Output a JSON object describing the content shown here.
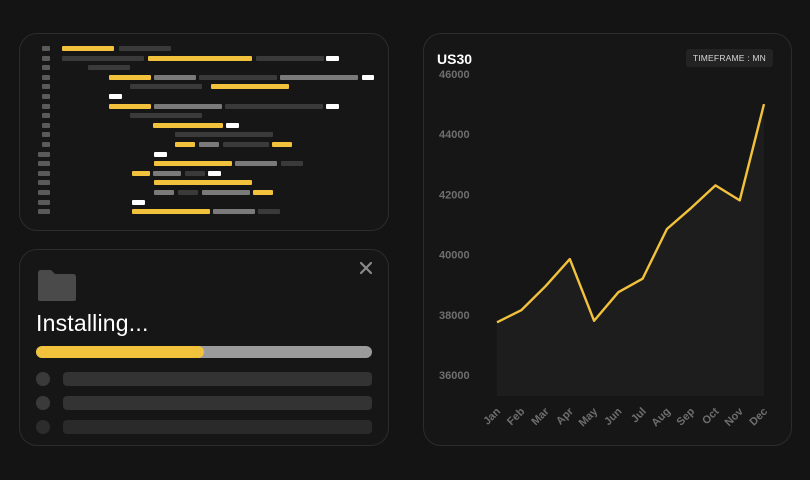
{
  "code_panel": {
    "colors": {
      "yellow": "#f3c23c",
      "gray": "#7a7a7a",
      "dark": "#3a3a3a",
      "white": "#ffffff",
      "gutter": "#5a5a5a"
    }
  },
  "installer": {
    "title": "Installing...",
    "progress_fraction": 0.5,
    "close_icon": "close-icon",
    "folder_icon": "folder-icon",
    "placeholder_rows": 3
  },
  "chart": {
    "title": "US30",
    "timeframe_label": "TIMEFRAME : MN"
  },
  "chart_data": {
    "type": "area",
    "title": "US30",
    "categories": [
      "Jan",
      "Feb",
      "Mar",
      "Apr",
      "May",
      "Jun",
      "Jul",
      "Aug",
      "Sep",
      "Oct",
      "Nov",
      "Dec"
    ],
    "series": [
      {
        "values": [
          37750,
          38150,
          38950,
          39850,
          37800,
          38750,
          39200,
          40850,
          41550,
          42300,
          41800,
          45000
        ]
      }
    ],
    "yticks": [
      36000,
      38000,
      40000,
      42000,
      44000,
      46000
    ],
    "ylim": [
      35200,
      46400
    ],
    "grid": false,
    "line_color": "#f3c23c",
    "fill_color": "#1d1d1d"
  }
}
